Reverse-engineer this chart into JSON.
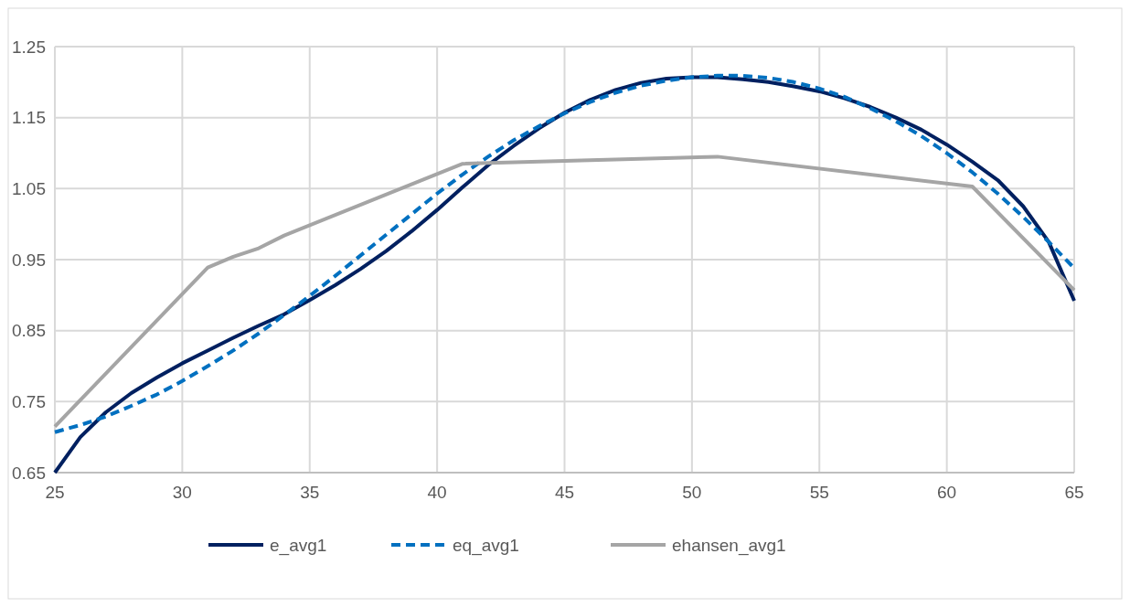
{
  "chart_data": {
    "type": "line",
    "x": [
      25,
      26,
      27,
      28,
      29,
      30,
      31,
      32,
      33,
      34,
      35,
      36,
      37,
      38,
      39,
      40,
      41,
      42,
      43,
      44,
      45,
      46,
      47,
      48,
      49,
      50,
      51,
      52,
      53,
      54,
      55,
      56,
      57,
      58,
      59,
      60,
      61,
      62,
      63,
      64,
      65
    ],
    "xlim": [
      25,
      65
    ],
    "xticks": [
      25,
      30,
      35,
      40,
      45,
      50,
      55,
      60,
      65
    ],
    "ylim": [
      0.65,
      1.25
    ],
    "yticks": [
      {
        "value": 0.65,
        "label": "0.65"
      },
      {
        "value": 0.75,
        "label": "0.75"
      },
      {
        "value": 0.85,
        "label": "0.85"
      },
      {
        "value": 0.95,
        "label": "0.95"
      },
      {
        "value": 1.05,
        "label": "1.05"
      },
      {
        "value": 1.15,
        "label": "1.15"
      },
      {
        "value": 1.25,
        "label": "1.25"
      }
    ],
    "grid": true,
    "legend": "bottom",
    "series": [
      {
        "name": "e_avg1",
        "color": "#002060",
        "values": [
          0.65,
          0.7,
          0.735,
          0.762,
          0.784,
          0.804,
          0.822,
          0.84,
          0.857,
          0.873,
          0.893,
          0.914,
          0.937,
          0.962,
          0.99,
          1.02,
          1.052,
          1.083,
          1.11,
          1.135,
          1.157,
          1.175,
          1.189,
          1.199,
          1.205,
          1.207,
          1.207,
          1.204,
          1.2,
          1.194,
          1.187,
          1.177,
          1.165,
          1.15,
          1.133,
          1.112,
          1.088,
          1.062,
          1.025,
          0.975,
          0.892
        ]
      },
      {
        "name": "eq_avg1",
        "color": "#0070c0",
        "line_style": "dashed",
        "values": [
          0.707,
          0.717,
          0.729,
          0.744,
          0.76,
          0.779,
          0.8,
          0.822,
          0.846,
          0.872,
          0.899,
          0.927,
          0.956,
          0.985,
          1.014,
          1.043,
          1.07,
          1.095,
          1.118,
          1.138,
          1.156,
          1.172,
          1.185,
          1.195,
          1.202,
          1.207,
          1.209,
          1.209,
          1.206,
          1.2,
          1.191,
          1.179,
          1.163,
          1.145,
          1.124,
          1.1,
          1.073,
          1.043,
          1.01,
          0.975,
          0.938
        ]
      },
      {
        "name": "ehansen_avg1",
        "color": "#a5a5a5",
        "x": [
          25,
          31,
          32,
          33,
          34,
          41,
          51,
          61,
          65
        ],
        "values": [
          0.715,
          0.939,
          0.954,
          0.966,
          0.984,
          1.085,
          1.095,
          1.053,
          0.907
        ]
      }
    ]
  }
}
